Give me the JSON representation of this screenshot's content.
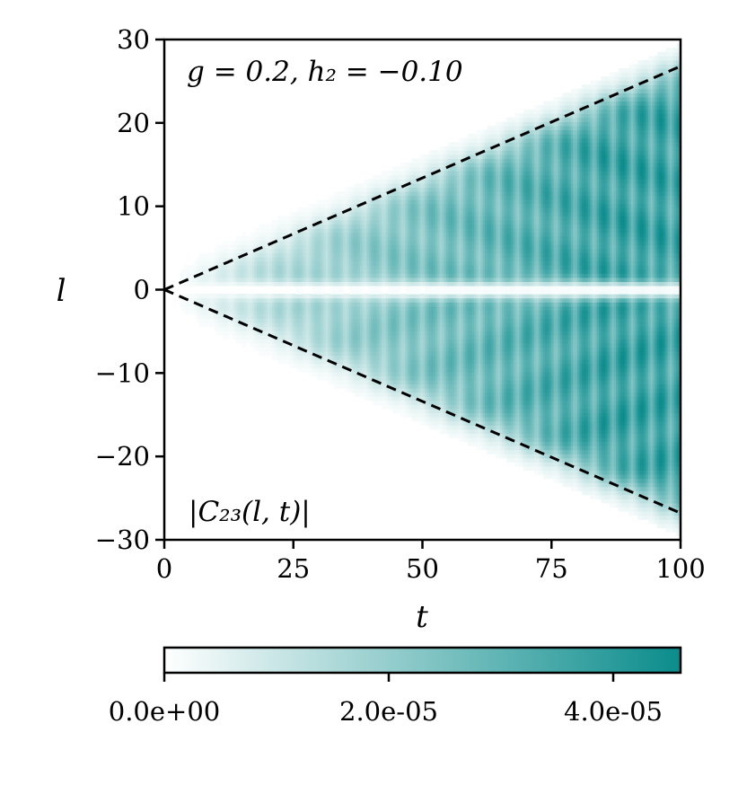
{
  "chart_data": {
    "type": "heatmap",
    "xlabel": "t",
    "ylabel": "l",
    "xlim": [
      0,
      100
    ],
    "ylim": [
      -30,
      30
    ],
    "xticks": [
      "0",
      "25",
      "50",
      "75",
      "100"
    ],
    "yticks": [
      "30",
      "20",
      "10",
      "0",
      "−10",
      "−20",
      "−30"
    ],
    "annotation_top": "g = 0.2, h₂ = −0.10",
    "annotation_bottom": "|C₂₃(l, t)|",
    "light_cone": {
      "velocity": 0.268,
      "style": "dashed",
      "color": "#000000"
    },
    "colormap": {
      "min_color": "#ffffff",
      "max_color": "#0b8c8c"
    },
    "colorbar": {
      "min": 0,
      "max": 4.6e-05,
      "ticks": [
        0,
        2e-05,
        4e-05
      ],
      "tick_labels": [
        "0.0e+00",
        "2.0e-05",
        "4.0e-05"
      ]
    },
    "oscillation_period_t": 3.7
  }
}
